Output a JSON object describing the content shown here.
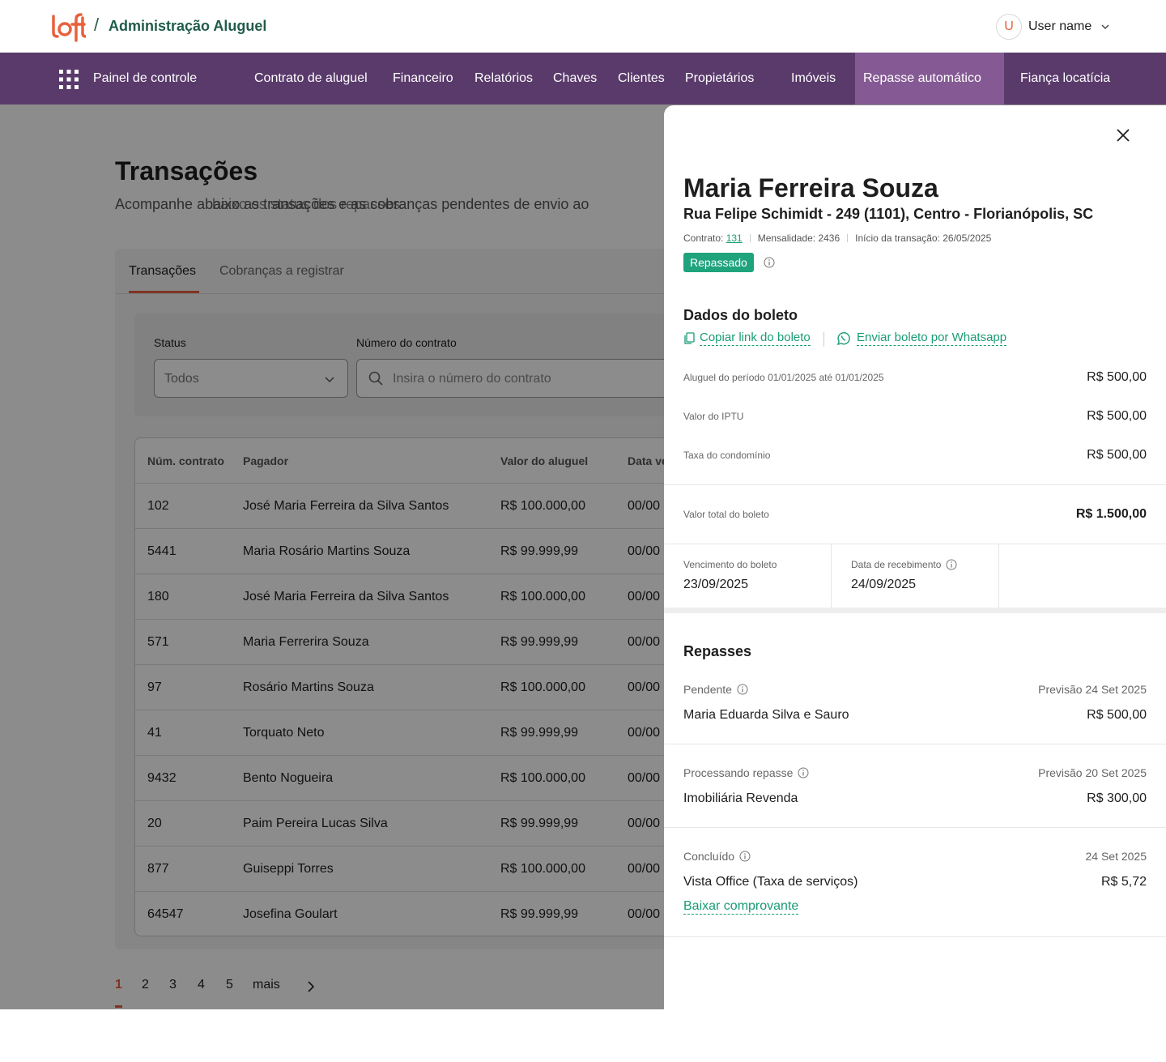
{
  "header": {
    "app_title": "Administração Aluguel",
    "separator": "/",
    "user_initial": "U",
    "user_name": "User name"
  },
  "nav": {
    "items": [
      {
        "label": "Painel de controle"
      },
      {
        "label": "Contrato de aluguel"
      },
      {
        "label": "Financeiro"
      },
      {
        "label": "Relatórios"
      },
      {
        "label": "Chaves"
      },
      {
        "label": "Clientes"
      },
      {
        "label": "Propietários"
      },
      {
        "label": "Imóveis"
      },
      {
        "label": "Repasse automático"
      },
      {
        "label": "Fiança locatícia"
      }
    ],
    "active": "Repasse automático"
  },
  "page": {
    "title": "Transações",
    "subtitle": "Acompanhe abaixo as transações e as cobranças pendentes de envio ao",
    "subtitle_overlap": "baixo os status dos repasses.",
    "tabs": [
      "Transações",
      "Cobranças a registrar"
    ],
    "filters": {
      "status_label": "Status",
      "status_value": "Todos",
      "contract_label": "Número do contrato",
      "contract_placeholder": "Insira o número do contrato"
    },
    "table": {
      "columns": [
        "Núm. contrato",
        "Pagador",
        "Valor do aluguel",
        "Data ve"
      ],
      "rows": [
        {
          "contract": "102",
          "payer": "José Maria Ferreira da Silva Santos",
          "value": "R$ 100.000,00",
          "date": "00/00"
        },
        {
          "contract": "5441",
          "payer": "Maria Rosário Martins Souza",
          "value": "R$ 99.999,99",
          "date": "00/00"
        },
        {
          "contract": "180",
          "payer": "José Maria Ferreira da Silva Santos",
          "value": "R$ 100.000,00",
          "date": "00/00"
        },
        {
          "contract": "571",
          "payer": "Maria Ferrerira Souza",
          "value": "R$ 99.999,99",
          "date": "00/00"
        },
        {
          "contract": "97",
          "payer": "Rosário Martins Souza",
          "value": "R$ 100.000,00",
          "date": "00/00"
        },
        {
          "contract": "41",
          "payer": "Torquato Neto",
          "value": "R$ 99.999,99",
          "date": "00/00"
        },
        {
          "contract": "9432",
          "payer": "Bento Nogueira",
          "value": "R$ 100.000,00",
          "date": "00/00"
        },
        {
          "contract": "20",
          "payer": "Paim Pereira Lucas Silva",
          "value": "R$ 99.999,99",
          "date": "00/00"
        },
        {
          "contract": "877",
          "payer": "Guiseppi Torres",
          "value": "R$ 100.000,00",
          "date": "00/00"
        },
        {
          "contract": "64547",
          "payer": "Josefina Goulart",
          "value": "R$ 99.999,99",
          "date": "00/00"
        }
      ]
    },
    "pagination": {
      "pages": [
        "1",
        "2",
        "3",
        "4",
        "5"
      ],
      "more": "mais",
      "current": "1"
    }
  },
  "drawer": {
    "name": "Maria Ferreira Souza",
    "address": "Rua Felipe Schimidt - 249 (1101), Centro - Florianópolis, SC",
    "meta": {
      "contract_label": "Contrato:",
      "contract_value": "131",
      "monthly_label": "Mensalidade: 2436",
      "start_label": "Início da transação: 26/05/2025"
    },
    "status_badge": "Repassado",
    "boleto": {
      "title": "Dados do boleto",
      "copy_link": "Copiar link do boleto",
      "whatsapp": "Enviar boleto por Whatsapp",
      "lines": [
        {
          "label": "Aluguel do período 01/01/2025 até 01/01/2025",
          "value": "R$ 500,00"
        },
        {
          "label": "Valor do IPTU",
          "value": "R$ 500,00"
        },
        {
          "label": "Taxa do condomínio",
          "value": "R$ 500,00"
        }
      ],
      "total_label": "Valor total do boleto",
      "total_value": "R$ 1.500,00",
      "due_label": "Vencimento do boleto",
      "due_value": "23/09/2025",
      "received_label": "Data de recebimento",
      "received_value": "24/09/2025"
    },
    "repasses": {
      "title": "Repasses",
      "items": [
        {
          "status": "Pendente",
          "forecast": "Previsão 24 Set 2025",
          "name": "Maria Eduarda Silva e Sauro",
          "value": "R$ 500,00"
        },
        {
          "status": "Processando repasse",
          "forecast": "Previsão 20 Set 2025",
          "name": "Imobiliária Revenda",
          "value": "R$ 300,00"
        },
        {
          "status": "Concluído",
          "forecast": "24 Set 2025",
          "name": "Vista Office (Taxa de serviços)",
          "value": "R$ 5,72",
          "link": "Baixar comprovante"
        }
      ]
    }
  },
  "colors": {
    "brand_orange": "#e8603c",
    "nav_purple": "#5a3a6b",
    "nav_active": "#855a94",
    "success_green": "#1fa37d",
    "link_green": "#1a9c76"
  }
}
